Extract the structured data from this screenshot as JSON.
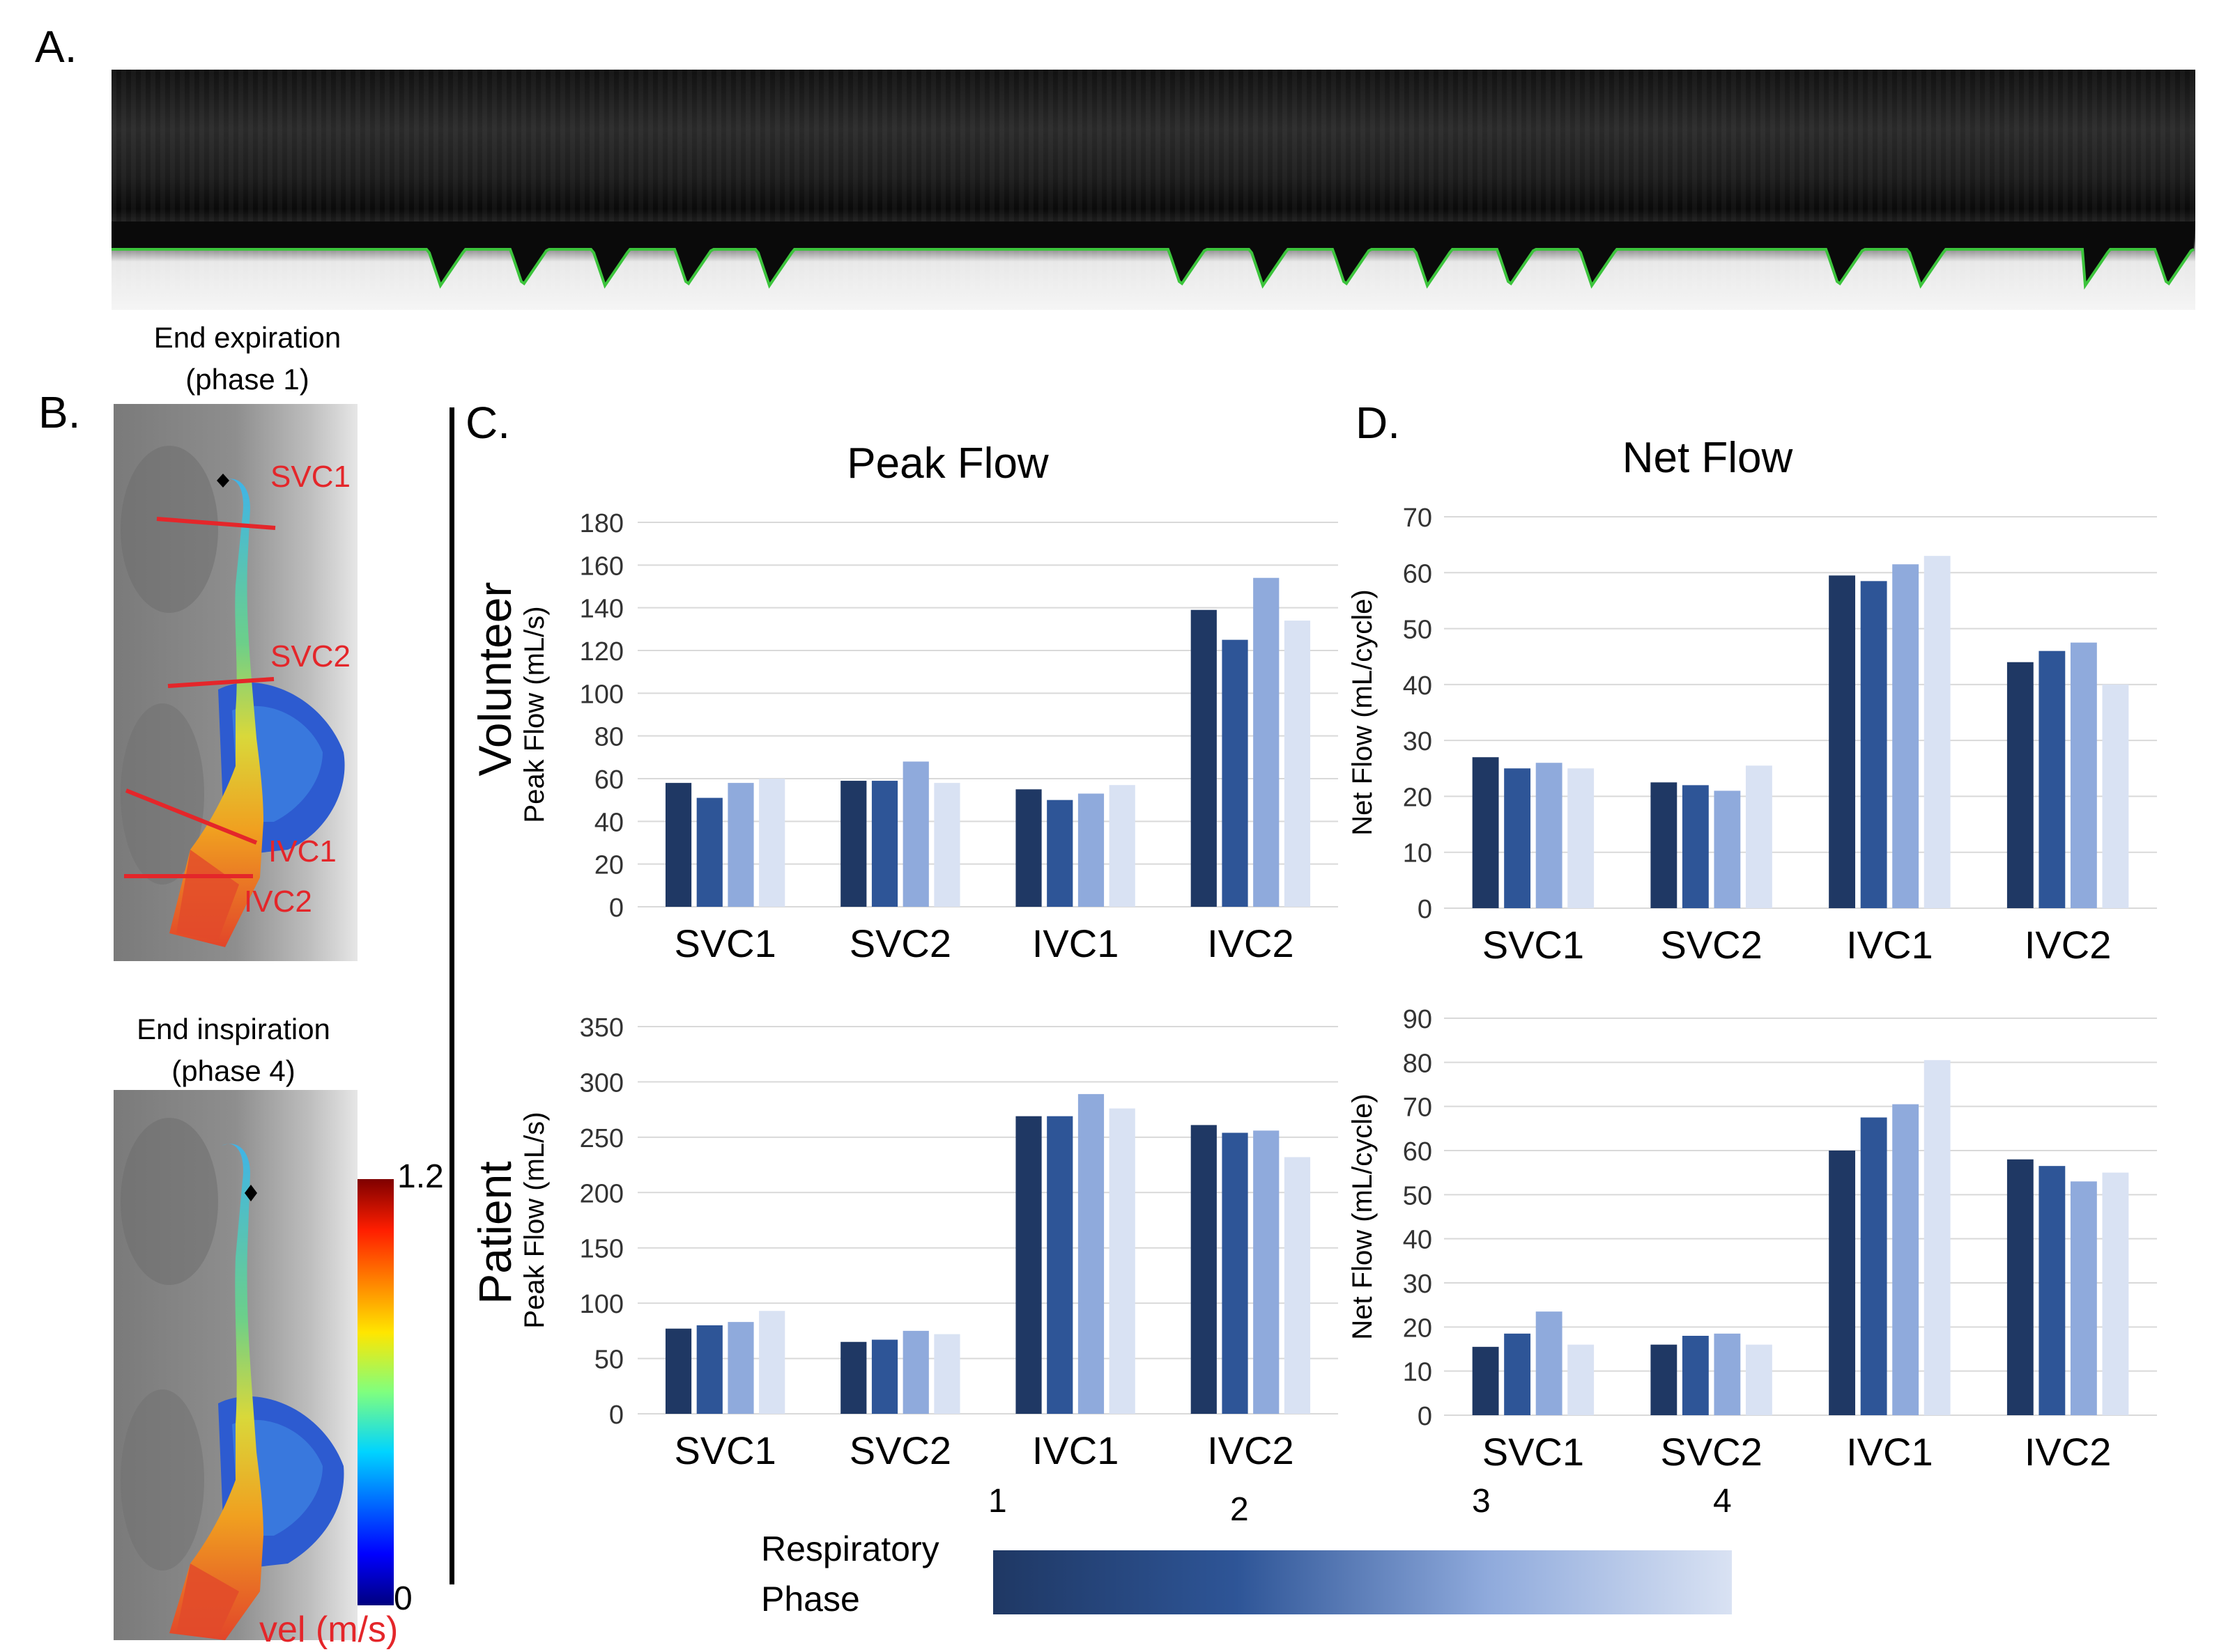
{
  "panel_letters": {
    "a": "A.",
    "b": "B.",
    "c": "C.",
    "d": "D."
  },
  "panel_b": {
    "top_caption_line1": "End expiration",
    "top_caption_line2": "(phase 1)",
    "bottom_caption_line1": "End inspiration",
    "bottom_caption_line2": "(phase 4)",
    "vessel_labels": [
      "SVC1",
      "SVC2",
      "IVC1",
      "IVC2"
    ],
    "colorbar_max": "1.2",
    "colorbar_min": "0",
    "colorbar_label": "vel (m/s)"
  },
  "row_labels": {
    "volunteer": "Volunteer",
    "patient": "Patient"
  },
  "legend": {
    "title_line1": "Respiratory",
    "title_line2": "Phase",
    "ticks": [
      "1",
      "2",
      "3",
      "4"
    ]
  },
  "colors": {
    "phase1": "#1f3864",
    "phase2": "#2e5597",
    "phase3": "#8faadc",
    "phase4": "#d9e2f3",
    "label_red": "#e4262a",
    "grid": "#d9d9d9"
  },
  "chart_data": [
    {
      "id": "c-volunteer",
      "type": "bar",
      "title": "Peak Flow",
      "ylabel": "Peak Flow (mL/s)",
      "categories": [
        "SVC1",
        "SVC2",
        "IVC1",
        "IVC2"
      ],
      "ylim": [
        0,
        180
      ],
      "yticks": [
        0,
        20,
        40,
        60,
        80,
        100,
        120,
        140,
        160,
        180
      ],
      "series": [
        {
          "values": [
            58,
            59,
            55,
            139
          ]
        },
        {
          "values": [
            51,
            59,
            50,
            125
          ]
        },
        {
          "values": [
            58,
            68,
            53,
            154
          ]
        },
        {
          "values": [
            60,
            58,
            57,
            134
          ]
        }
      ]
    },
    {
      "id": "d-volunteer",
      "type": "bar",
      "title": "Net Flow",
      "ylabel": "Net Flow (mL/cycle)",
      "categories": [
        "SVC1",
        "SVC2",
        "IVC1",
        "IVC2"
      ],
      "ylim": [
        0,
        70
      ],
      "yticks": [
        0,
        10,
        20,
        30,
        40,
        50,
        60,
        70
      ],
      "series": [
        {
          "values": [
            27,
            22.5,
            59.5,
            44
          ]
        },
        {
          "values": [
            25,
            22,
            58.5,
            46
          ]
        },
        {
          "values": [
            26,
            21,
            61.5,
            47.5
          ]
        },
        {
          "values": [
            25,
            25.5,
            63,
            40
          ]
        }
      ]
    },
    {
      "id": "c-patient",
      "type": "bar",
      "title": "",
      "ylabel": "Peak Flow (mL/s)",
      "categories": [
        "SVC1",
        "SVC2",
        "IVC1",
        "IVC2"
      ],
      "ylim": [
        0,
        350
      ],
      "yticks": [
        0,
        50,
        100,
        150,
        200,
        250,
        300,
        350
      ],
      "series": [
        {
          "values": [
            77,
            65,
            269,
            261
          ]
        },
        {
          "values": [
            80,
            67,
            269,
            254
          ]
        },
        {
          "values": [
            83,
            75,
            289,
            256
          ]
        },
        {
          "values": [
            93,
            72,
            276,
            232
          ]
        }
      ]
    },
    {
      "id": "d-patient",
      "type": "bar",
      "title": "",
      "ylabel": "Net Flow (mL/cycle)",
      "categories": [
        "SVC1",
        "SVC2",
        "IVC1",
        "IVC2"
      ],
      "ylim": [
        0,
        90
      ],
      "yticks": [
        0,
        10,
        20,
        30,
        40,
        50,
        60,
        70,
        80,
        90
      ],
      "series": [
        {
          "values": [
            15.5,
            16,
            60,
            58
          ]
        },
        {
          "values": [
            18.5,
            18,
            67.5,
            56.5
          ]
        },
        {
          "values": [
            23.5,
            18.5,
            70.5,
            53
          ]
        },
        {
          "values": [
            16,
            16,
            80.5,
            55
          ]
        }
      ]
    }
  ]
}
